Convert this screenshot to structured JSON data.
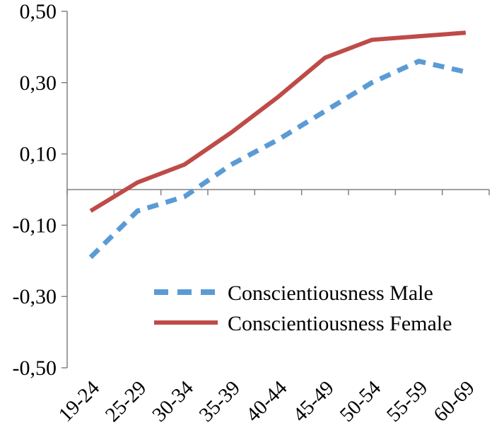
{
  "chart_data": {
    "type": "line",
    "title": "",
    "xlabel": "",
    "ylabel": "",
    "categories": [
      "19-24",
      "25-29",
      "30-34",
      "35-39",
      "40-44",
      "45-49",
      "50-54",
      "55-59",
      "60-69"
    ],
    "series": [
      {
        "name": "Conscientiousness Male",
        "color": "#5b9bd5",
        "style": "dashed",
        "values": [
          -0.19,
          -0.06,
          -0.02,
          0.07,
          0.14,
          0.22,
          0.3,
          0.36,
          0.33
        ]
      },
      {
        "name": "Conscientiousness Female",
        "color": "#be4b48",
        "style": "solid",
        "values": [
          -0.06,
          0.02,
          0.07,
          0.16,
          0.26,
          0.37,
          0.42,
          0.43,
          0.44
        ]
      }
    ],
    "ylim": [
      -0.5,
      0.5
    ],
    "yticks": [
      0.5,
      0.3,
      0.1,
      -0.1,
      -0.3,
      -0.5
    ],
    "ytick_labels": [
      "0,50",
      "0,30",
      "0,10",
      "-0,10",
      "-0,30",
      "-0,50"
    ],
    "grid": "zero-line-only",
    "axis_color": "#808080",
    "text_color": "#000000",
    "legend_position": "inside-bottom-center"
  }
}
